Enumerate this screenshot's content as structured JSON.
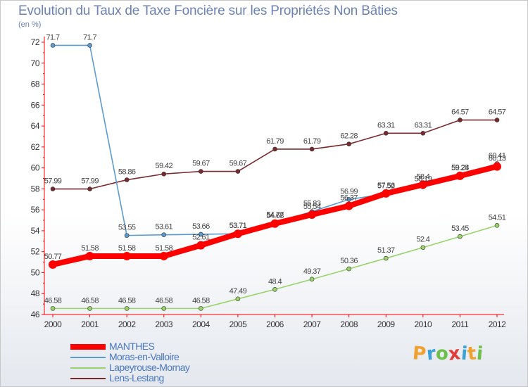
{
  "header": {
    "title": "Evolution du Taux de Taxe Foncière sur les Propriétés Non Bâties",
    "unit": "(en %)"
  },
  "logo": {
    "text": "Proxiti",
    "letter_colors": [
      "#f0a030",
      "#3aa0d8",
      "#6cc04a",
      "#e03a3a",
      "#3aa0d8",
      "#f0a030",
      "#6cc04a"
    ]
  },
  "chart_data": {
    "type": "line",
    "title": "Evolution du Taux de Taxe Foncière sur les Propriétés Non Bâties",
    "ylabel": "(en %)",
    "xlabel": "",
    "x": [
      "2000",
      "2001",
      "2002",
      "2003",
      "2004",
      "2005",
      "2006",
      "2007",
      "2008",
      "2009",
      "2010",
      "2011",
      "2012"
    ],
    "ylim": [
      46,
      72
    ],
    "yticks": [
      46,
      48,
      50,
      52,
      54,
      56,
      58,
      60,
      62,
      64,
      66,
      68,
      70,
      72
    ],
    "grid": false,
    "legend_position": "bottom-left",
    "series": [
      {
        "name": "MANTHES",
        "color": "#ff0000",
        "emphasis": true,
        "values": [
          50.77,
          51.58,
          51.58,
          51.58,
          52.61,
          53.71,
          54.68,
          55.54,
          56.37,
          57.56,
          58.4,
          59.24,
          60.13
        ],
        "labels": [
          "50.77",
          "51.58",
          "51.58",
          "51.58",
          "52.61",
          "53.71",
          "54.68",
          "55.54",
          "56.37",
          "57.56",
          "58.4",
          "59.24",
          "60.13"
        ]
      },
      {
        "name": "Moras-en-Valloire",
        "color": "#5b9bd0",
        "emphasis": false,
        "values": [
          71.7,
          71.7,
          53.55,
          53.61,
          53.66,
          53.71,
          54.77,
          55.83,
          56.99,
          57.52,
          58.19,
          59.28,
          60.41
        ],
        "labels": [
          "71.7",
          "71.7",
          "53.55",
          "53.61",
          "53.66",
          "53.71",
          "54.77",
          "55.83",
          "56.99",
          "57.52",
          "58.19",
          "59.28",
          "60.41"
        ]
      },
      {
        "name": "Lapeyrouse-Mornay",
        "color": "#99d36a",
        "emphasis": false,
        "values": [
          46.58,
          46.58,
          46.58,
          46.58,
          46.58,
          47.49,
          48.4,
          49.37,
          50.36,
          51.37,
          52.4,
          53.45,
          54.51
        ],
        "labels": [
          "46.58",
          "46.58",
          "46.58",
          "46.58",
          "46.58",
          "47.49",
          "48.4",
          "49.37",
          "50.36",
          "51.37",
          "52.4",
          "53.45",
          "54.51"
        ]
      },
      {
        "name": "Lens-Lestang",
        "color": "#7a2a2e",
        "emphasis": false,
        "values": [
          57.99,
          57.99,
          58.86,
          59.42,
          59.67,
          59.67,
          61.79,
          61.79,
          62.28,
          63.31,
          63.31,
          64.57,
          64.57
        ],
        "labels": [
          "57.99",
          "57.99",
          "58.86",
          "59.42",
          "59.67",
          "59.67",
          "61.79",
          "61.79",
          "62.28",
          "63.31",
          "63.31",
          "64.57",
          "64.57"
        ]
      }
    ]
  }
}
